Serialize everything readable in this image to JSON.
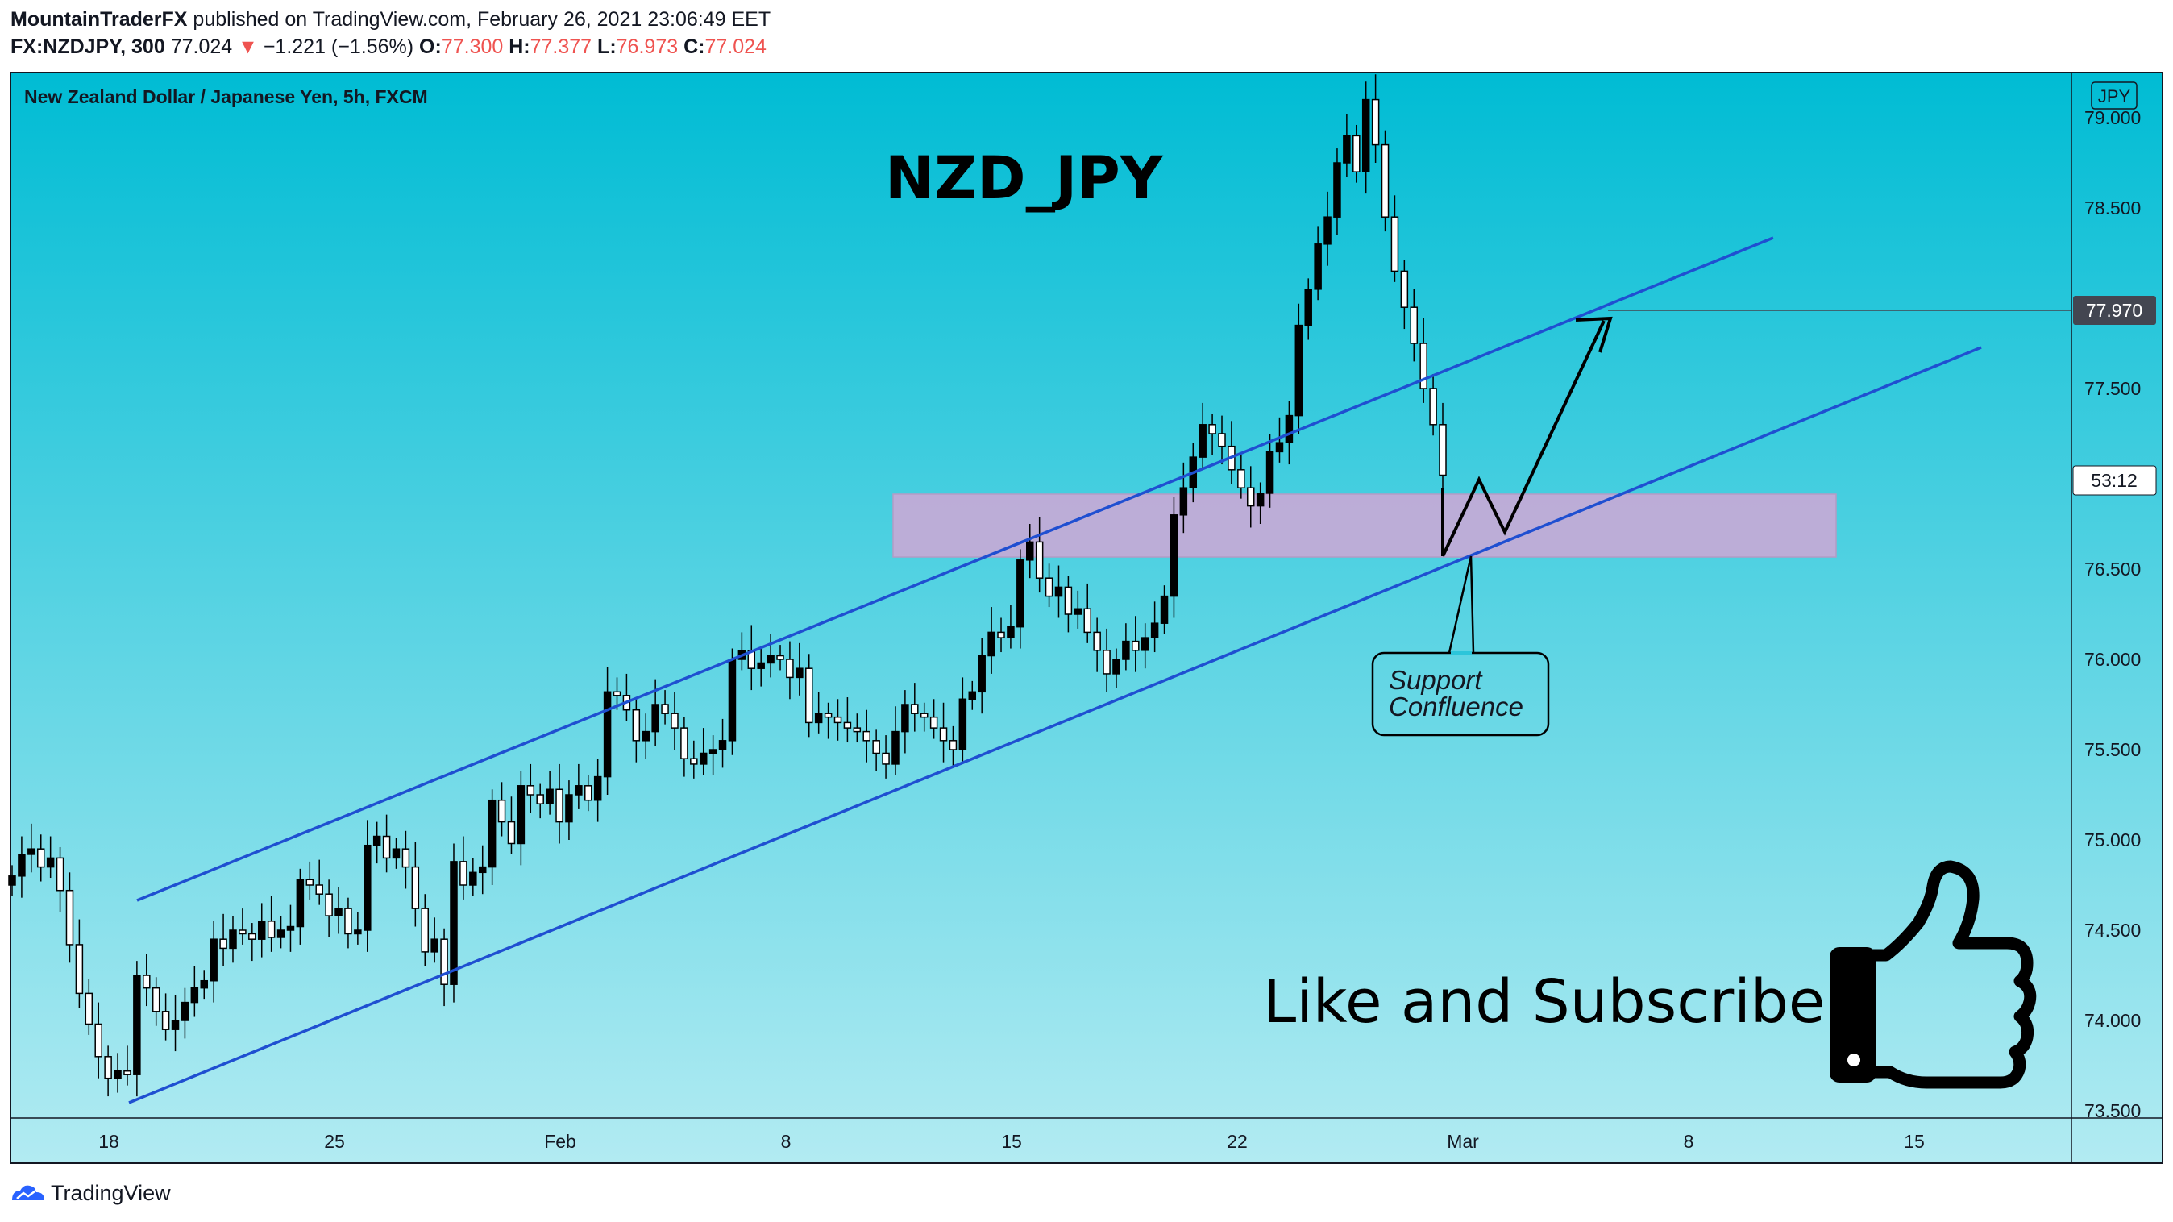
{
  "header": {
    "author": "MountainTraderFX",
    "published_text": "published on TradingView.com, February 26, 2021 23:06:49 EET",
    "symbol": "FX:NZDJPY, 300",
    "last": "77.024",
    "change_arrow": "▼",
    "change": "−1.221 (−1.56%)",
    "o_label": "O:",
    "o_value": "77.300",
    "h_label": "H:",
    "h_value": "77.377",
    "l_label": "L:",
    "l_value": "76.973",
    "c_label": "C:",
    "c_value": "77.024"
  },
  "chart": {
    "legend": "New Zealand Dollar / Japanese Yen, 5h, FXCM",
    "currency_badge": "JPY",
    "title_annotation": "NZD_JPY",
    "support_label_line1": "Support",
    "support_label_line2": "Confluence",
    "cta_text": "Like and Subscribe",
    "price_label_target": "77.970",
    "countdown_label": "53:12"
  },
  "footer": {
    "brand": "TradingView"
  },
  "colors": {
    "bg_top": "#00bcd4",
    "bg_bottom": "#b2ebf2",
    "channel_line": "#1f4fd1",
    "zone_fill": "#c9a8d6",
    "candle": "#000000",
    "down_color": "#ef5350"
  },
  "icons": [
    "thumbs-up-icon",
    "tradingview-logo-icon"
  ],
  "chart_data": {
    "type": "candlestick",
    "symbol": "NZDJPY",
    "timeframe": "5h",
    "y_axis": {
      "ticks": [
        73.5,
        74.0,
        74.5,
        75.0,
        75.5,
        76.0,
        76.5,
        77.0,
        77.5,
        78.0,
        78.5,
        79.0
      ],
      "tick_labels": [
        "73.500",
        "74.000",
        "74.500",
        "75.000",
        "75.500",
        "76.000",
        "76.500",
        "",
        "77.500",
        "",
        "78.500",
        "79.000"
      ],
      "ylim": [
        73.5,
        79.25
      ]
    },
    "x_axis": {
      "tick_labels": [
        "18",
        "25",
        "Feb",
        "8",
        "15",
        "22",
        "Mar",
        "8",
        "15"
      ],
      "tick_dates": [
        "2021-01-18",
        "2021-01-25",
        "2021-02-01",
        "2021-02-08",
        "2021-02-15",
        "2021-02-22",
        "2021-03-01",
        "2021-03-08",
        "2021-03-15"
      ],
      "xlim": [
        "2021-01-15",
        "2021-03-21"
      ]
    },
    "closes": [
      74.8,
      74.92,
      74.95,
      74.85,
      74.9,
      74.72,
      74.42,
      74.15,
      73.98,
      73.8,
      73.68,
      73.72,
      73.7,
      74.25,
      74.18,
      74.05,
      73.95,
      74.0,
      74.1,
      74.18,
      74.22,
      74.45,
      74.4,
      74.5,
      74.48,
      74.45,
      74.55,
      74.46,
      74.5,
      74.52,
      74.78,
      74.75,
      74.7,
      74.58,
      74.62,
      74.48,
      74.5,
      74.97,
      75.02,
      74.9,
      74.95,
      74.85,
      74.62,
      74.38,
      74.45,
      74.2,
      74.88,
      74.75,
      74.82,
      74.85,
      75.22,
      75.1,
      74.98,
      75.3,
      75.25,
      75.2,
      75.28,
      75.1,
      75.25,
      75.3,
      75.22,
      75.35,
      75.82,
      75.8,
      75.72,
      75.55,
      75.6,
      75.75,
      75.7,
      75.62,
      75.45,
      75.42,
      75.48,
      75.5,
      75.55,
      76.0,
      76.05,
      75.95,
      75.98,
      76.02,
      76.0,
      75.9,
      75.95,
      75.65,
      75.7,
      75.68,
      75.65,
      75.62,
      75.6,
      75.55,
      75.48,
      75.42,
      75.6,
      75.75,
      75.7,
      75.68,
      75.62,
      75.55,
      75.5,
      75.78,
      75.82,
      76.02,
      76.15,
      76.12,
      76.18,
      76.55,
      76.65,
      76.45,
      76.35,
      76.4,
      76.25,
      76.28,
      76.15,
      76.05,
      75.92,
      76.0,
      76.1,
      76.05,
      76.12,
      76.2,
      76.35,
      76.8,
      76.95,
      77.12,
      77.3,
      77.25,
      77.18,
      77.05,
      76.95,
      76.85,
      76.92,
      77.15,
      77.2,
      77.35,
      77.85,
      78.05,
      78.3,
      78.45,
      78.75,
      78.9,
      78.7,
      79.1,
      78.85,
      78.45,
      78.15,
      77.95,
      77.75,
      77.5,
      77.3,
      77.02
    ]
  }
}
